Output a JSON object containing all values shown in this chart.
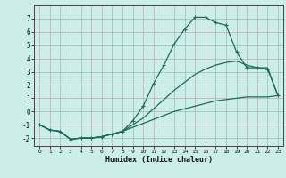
{
  "xlabel": "Humidex (Indice chaleur)",
  "bg_color": "#cceee8",
  "grid_color": "#b0b0b0",
  "line_color": "#1a6b5a",
  "xlim": [
    -0.5,
    23.5
  ],
  "ylim": [
    -2.6,
    8.0
  ],
  "yticks": [
    -2,
    -1,
    0,
    1,
    2,
    3,
    4,
    5,
    6,
    7
  ],
  "xticks": [
    0,
    1,
    2,
    3,
    4,
    5,
    6,
    7,
    8,
    9,
    10,
    11,
    12,
    13,
    14,
    15,
    16,
    17,
    18,
    19,
    20,
    21,
    22,
    23
  ],
  "series1_x": [
    0,
    1,
    2,
    3,
    4,
    5,
    6,
    7,
    8,
    9,
    10,
    11,
    12,
    13,
    14,
    15,
    16,
    17,
    18,
    19,
    20,
    21,
    22,
    23
  ],
  "series1_y": [
    -1.0,
    -1.4,
    -1.5,
    -2.1,
    -2.0,
    -2.0,
    -1.9,
    -1.7,
    -1.5,
    -0.7,
    0.4,
    2.1,
    3.5,
    5.1,
    6.2,
    7.1,
    7.1,
    6.7,
    6.5,
    4.5,
    3.3,
    3.3,
    3.2,
    1.2
  ],
  "series2_x": [
    0,
    1,
    2,
    3,
    4,
    5,
    6,
    7,
    8,
    9,
    10,
    11,
    12,
    13,
    14,
    15,
    16,
    17,
    18,
    19,
    20,
    21,
    22,
    23
  ],
  "series2_y": [
    -1.0,
    -1.4,
    -1.5,
    -2.1,
    -2.0,
    -2.0,
    -1.9,
    -1.7,
    -1.5,
    -1.0,
    -0.5,
    0.2,
    0.9,
    1.6,
    2.2,
    2.8,
    3.2,
    3.5,
    3.7,
    3.8,
    3.5,
    3.3,
    3.3,
    1.2
  ],
  "series3_x": [
    0,
    1,
    2,
    3,
    4,
    5,
    6,
    7,
    8,
    9,
    10,
    11,
    12,
    13,
    14,
    15,
    16,
    17,
    18,
    19,
    20,
    21,
    22,
    23
  ],
  "series3_y": [
    -1.0,
    -1.4,
    -1.5,
    -2.1,
    -2.0,
    -2.0,
    -1.9,
    -1.7,
    -1.5,
    -1.2,
    -0.9,
    -0.6,
    -0.3,
    0.0,
    0.2,
    0.4,
    0.6,
    0.8,
    0.9,
    1.0,
    1.1,
    1.1,
    1.1,
    1.2
  ]
}
